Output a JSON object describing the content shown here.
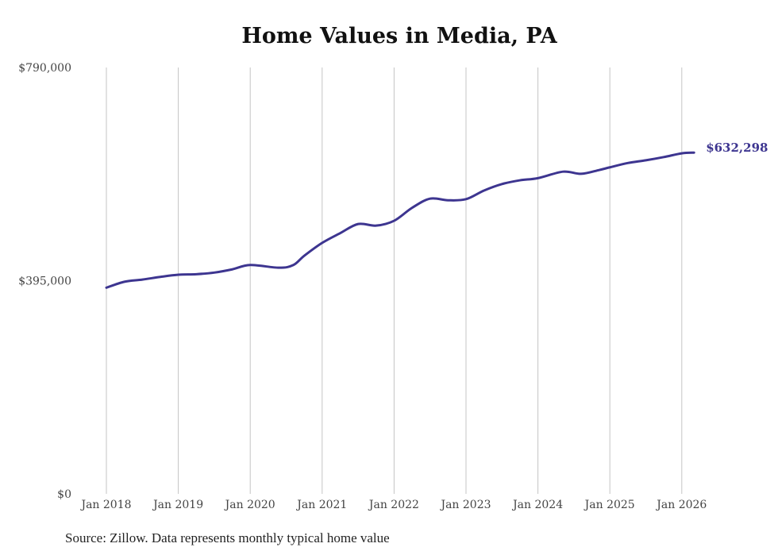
{
  "chart_data": {
    "type": "line",
    "title": "Home Values in Media, PA",
    "source": "Source: Zillow. Data represents monthly typical home value",
    "xlabel": "",
    "ylabel": "",
    "ylim": [
      0,
      790000
    ],
    "y_ticks": [
      0,
      395000,
      790000
    ],
    "y_tick_labels": [
      "$0",
      "$395,000",
      "$790,000"
    ],
    "x_ticks": [
      2018,
      2019,
      2020,
      2021,
      2022,
      2023,
      2024,
      2025,
      2026
    ],
    "x_tick_labels": [
      "Jan 2018",
      "Jan 2019",
      "Jan 2020",
      "Jan 2021",
      "Jan 2022",
      "Jan 2023",
      "Jan 2024",
      "Jan 2025",
      "Jan 2026"
    ],
    "grid": "vertical",
    "line_color": "#3d3590",
    "end_label": "$632,298",
    "series": [
      {
        "name": "Typical home value",
        "x": [
          2018.0,
          2018.25,
          2018.5,
          2018.75,
          2019.0,
          2019.25,
          2019.5,
          2019.75,
          2020.0,
          2020.4,
          2020.6,
          2020.75,
          2021.0,
          2021.25,
          2021.5,
          2021.75,
          2022.0,
          2022.25,
          2022.5,
          2022.75,
          2023.0,
          2023.25,
          2023.5,
          2023.75,
          2024.0,
          2024.35,
          2024.6,
          2024.85,
          2025.0,
          2025.25,
          2025.5,
          2025.75,
          2026.0,
          2026.17
        ],
        "values": [
          382000,
          393000,
          397000,
          402000,
          406000,
          407000,
          410000,
          416000,
          424000,
          419000,
          424000,
          441000,
          465000,
          483000,
          500000,
          497000,
          506000,
          530000,
          547000,
          544000,
          546000,
          562000,
          574000,
          581000,
          585000,
          597000,
          593000,
          600000,
          605000,
          613000,
          618000,
          624000,
          631000,
          632298
        ]
      }
    ]
  }
}
